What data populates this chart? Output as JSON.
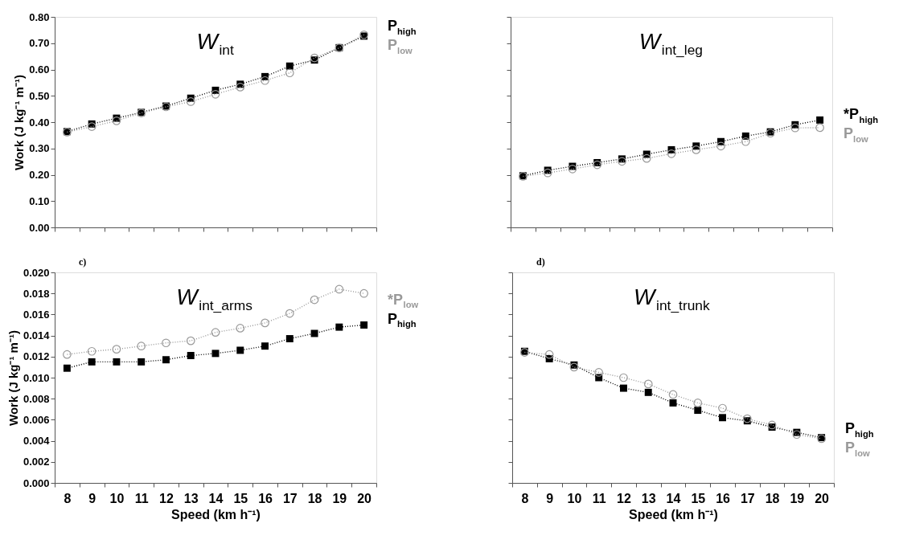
{
  "chart_data": [
    {
      "type": "line",
      "title": "W$_{int}$",
      "ylabel": "Work (J kg⁻¹ m⁻¹)",
      "categories": [
        "8",
        "9",
        "10",
        "11",
        "12",
        "13",
        "14",
        "15",
        "16",
        "17",
        "18",
        "19",
        "20"
      ],
      "ylim": [
        0,
        0.8
      ],
      "yticks": [
        {
          "value": 0,
          "label": "0.00"
        },
        {
          "value": 0.1,
          "label": "0.10"
        },
        {
          "value": 0.2,
          "label": "0.20"
        },
        {
          "value": 0.3,
          "label": "0.30"
        },
        {
          "value": 0.4,
          "label": "0.40"
        },
        {
          "value": 0.5,
          "label": "0.50"
        },
        {
          "value": 0.6,
          "label": "0.60"
        },
        {
          "value": 0.7,
          "label": "0.70"
        },
        {
          "value": 0.8,
          "label": "0.80"
        }
      ],
      "tick_labels": "y",
      "line_style": "dotted",
      "legend": "right",
      "series": [
        {
          "name": "P$_{high}$",
          "color": "#000000",
          "marker": "square",
          "values": [
            0.364,
            0.393,
            0.415,
            0.437,
            0.461,
            0.491,
            0.521,
            0.544,
            0.573,
            0.613,
            0.636,
            0.683,
            0.727
          ]
        },
        {
          "name": "P$_{low}$",
          "color": "#999999",
          "marker": "circle",
          "values": [
            0.362,
            0.383,
            0.405,
            0.435,
            0.458,
            0.478,
            0.506,
            0.533,
            0.558,
            0.587,
            0.644,
            0.682,
            0.732
          ]
        }
      ]
    },
    {
      "type": "line",
      "title": "W$_{int_leg}$",
      "categories": [
        "8",
        "9",
        "10",
        "11",
        "12",
        "13",
        "14",
        "15",
        "16",
        "17",
        "18",
        "19",
        "20"
      ],
      "ylim": [
        0,
        0.8
      ],
      "yticks": [
        {
          "value": 0,
          "label": null
        },
        {
          "value": 0.1,
          "label": null
        },
        {
          "value": 0.2,
          "label": null
        },
        {
          "value": 0.3,
          "label": null
        },
        {
          "value": 0.4,
          "label": null
        },
        {
          "value": 0.5,
          "label": null
        },
        {
          "value": 0.6,
          "label": null
        },
        {
          "value": 0.7,
          "label": null
        },
        {
          "value": 0.8,
          "label": null
        }
      ],
      "tick_labels": false,
      "line_style": "dotted",
      "legend": "right",
      "series": [
        {
          "name": "*P$_{high}$",
          "color": "#000000",
          "marker": "square",
          "values": [
            0.196,
            0.217,
            0.232,
            0.246,
            0.26,
            0.278,
            0.295,
            0.309,
            0.326,
            0.347,
            0.363,
            0.39,
            0.408
          ]
        },
        {
          "name": "P$_{low}$",
          "color": "#999999",
          "marker": "circle",
          "values": [
            0.194,
            0.207,
            0.222,
            0.238,
            0.251,
            0.262,
            0.28,
            0.295,
            0.309,
            0.326,
            0.358,
            0.378,
            0.379
          ]
        }
      ]
    },
    {
      "type": "line",
      "title": "W$_{int_arms}$",
      "xlabel": "Speed (km h⁻¹)",
      "ylabel": "Work (J kg⁻¹ m⁻¹)",
      "annotations": [
        "c)"
      ],
      "categories": [
        "8",
        "9",
        "10",
        "11",
        "12",
        "13",
        "14",
        "15",
        "16",
        "17",
        "18",
        "19",
        "20"
      ],
      "ylim": [
        0,
        0.02
      ],
      "yticks": [
        {
          "value": 0,
          "label": "0.000"
        },
        {
          "value": 0.002,
          "label": "0.002"
        },
        {
          "value": 0.004,
          "label": "0.004"
        },
        {
          "value": 0.006,
          "label": "0.006"
        },
        {
          "value": 0.008,
          "label": "0.008"
        },
        {
          "value": 0.01,
          "label": "0.010"
        },
        {
          "value": 0.012,
          "label": "0.012"
        },
        {
          "value": 0.014,
          "label": "0.014"
        },
        {
          "value": 0.016,
          "label": "0.016"
        },
        {
          "value": 0.018,
          "label": "0.018"
        },
        {
          "value": 0.02,
          "label": "0.020"
        }
      ],
      "line_style": "dotted",
      "legend": "right",
      "series": [
        {
          "name": "*P$_{low}$",
          "color": "#999999",
          "marker": "circle",
          "values": [
            0.0122,
            0.0125,
            0.0127,
            0.013,
            0.0133,
            0.0135,
            0.0143,
            0.0147,
            0.0152,
            0.0161,
            0.0174,
            0.0184,
            0.018
          ]
        },
        {
          "name": "P$_{high}$",
          "color": "#000000",
          "marker": "square",
          "values": [
            0.0109,
            0.0115,
            0.0115,
            0.0115,
            0.0117,
            0.0121,
            0.0123,
            0.0126,
            0.013,
            0.0137,
            0.0142,
            0.0148,
            0.015
          ]
        }
      ]
    },
    {
      "type": "line",
      "title": "W$_{int_trunk}$",
      "xlabel": "Speed (km h⁻¹)",
      "annotations": [
        "d)"
      ],
      "categories": [
        "8",
        "9",
        "10",
        "11",
        "12",
        "13",
        "14",
        "15",
        "16",
        "17",
        "18",
        "19",
        "20"
      ],
      "ylim": [
        0,
        0.02
      ],
      "yticks": [
        {
          "value": 0,
          "label": null
        },
        {
          "value": 0.002,
          "label": null
        },
        {
          "value": 0.004,
          "label": null
        },
        {
          "value": 0.006,
          "label": null
        },
        {
          "value": 0.008,
          "label": null
        },
        {
          "value": 0.01,
          "label": null
        },
        {
          "value": 0.012,
          "label": null
        },
        {
          "value": 0.014,
          "label": null
        },
        {
          "value": 0.016,
          "label": null
        },
        {
          "value": 0.018,
          "label": null
        },
        {
          "value": 0.02,
          "label": null
        }
      ],
      "tick_labels": "x",
      "line_style": "dotted",
      "legend": "right",
      "series": [
        {
          "name": "P$_{high}$",
          "color": "#000000",
          "marker": "square",
          "values": [
            0.0125,
            0.0118,
            0.0112,
            0.01,
            0.009,
            0.0086,
            0.0076,
            0.0069,
            0.0062,
            0.0059,
            0.0053,
            0.0048,
            0.0043
          ]
        },
        {
          "name": "P$_{low}$",
          "color": "#999999",
          "marker": "circle",
          "values": [
            0.0124,
            0.0122,
            0.011,
            0.0105,
            0.01,
            0.0094,
            0.0084,
            0.0076,
            0.0071,
            0.0061,
            0.0055,
            0.0046,
            0.0042
          ]
        }
      ]
    }
  ]
}
